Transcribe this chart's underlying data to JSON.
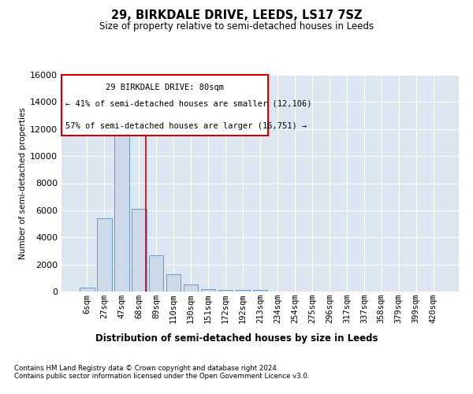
{
  "title1": "29, BIRKDALE DRIVE, LEEDS, LS17 7SZ",
  "title2": "Size of property relative to semi-detached houses in Leeds",
  "xlabel": "Distribution of semi-detached houses by size in Leeds",
  "ylabel": "Number of semi-detached properties",
  "footnote": "Contains HM Land Registry data © Crown copyright and database right 2024.\nContains public sector information licensed under the Open Government Licence v3.0.",
  "categories": [
    "6sqm",
    "27sqm",
    "47sqm",
    "68sqm",
    "89sqm",
    "110sqm",
    "130sqm",
    "151sqm",
    "172sqm",
    "192sqm",
    "213sqm",
    "234sqm",
    "254sqm",
    "275sqm",
    "296sqm",
    "317sqm",
    "337sqm",
    "358sqm",
    "379sqm",
    "399sqm",
    "420sqm"
  ],
  "bar_values": [
    300,
    5400,
    12400,
    6100,
    2700,
    1300,
    550,
    200,
    130,
    90,
    140,
    0,
    0,
    0,
    0,
    0,
    0,
    0,
    0,
    0,
    0
  ],
  "bar_color": "#ccd9e8",
  "bar_edge_color": "#6699cc",
  "annotation_line1": "29 BIRKDALE DRIVE: 80sqm",
  "annotation_line2": "← 41% of semi-detached houses are smaller (12,106)",
  "annotation_line3": "57% of semi-detached houses are larger (16,751) →",
  "ylim": [
    0,
    16000
  ],
  "yticks": [
    0,
    2000,
    4000,
    6000,
    8000,
    10000,
    12000,
    14000,
    16000
  ],
  "bg_color": "#dce6f0",
  "plot_bg_color": "#dce6f0",
  "grid_color": "#ffffff",
  "red_line_color": "#cc0000",
  "ann_box_edge_color": "#cc0000"
}
